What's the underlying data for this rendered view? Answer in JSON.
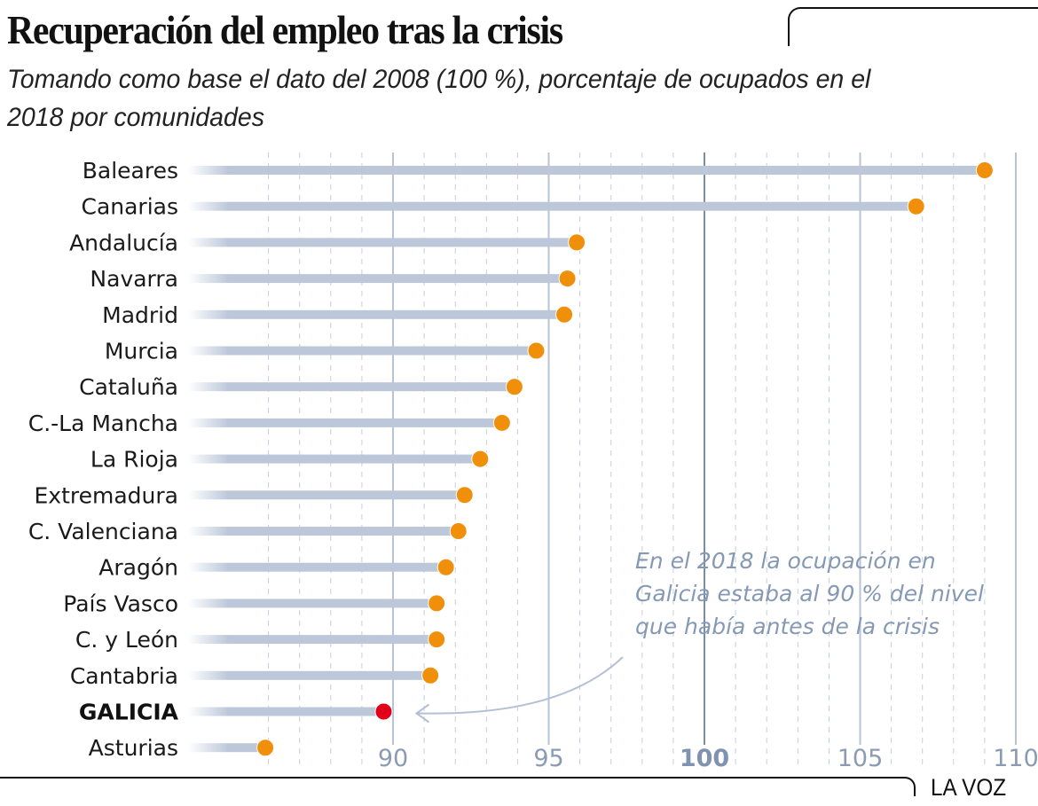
{
  "header": {
    "title": "Recuperación del empleo tras la crisis",
    "subtitle": "Tomando como base el dato del 2008 (100 %), porcentaje de ocupados en el 2018 por comunidades"
  },
  "footer": {
    "brand": "LA VOZ"
  },
  "annotation": {
    "text": "En el 2018 la ocupación en Galicia estaba al 90 % del nivel que había antes de la crisis",
    "target": "GALICIA"
  },
  "colors": {
    "bar": "#bcc8da",
    "dot": "#f0900a",
    "highlight_dot": "#e2001a",
    "grid": "#c5cfdd",
    "major_grid": "#b7c3d6",
    "base_line": "#7a8ea9",
    "annotation": "#8699b4"
  },
  "chart_data": {
    "type": "dot",
    "title": "Recuperación del empleo tras la crisis",
    "subtitle": "Tomando como base el dato del 2008 (100 %), porcentaje de ocupados en el 2018 por comunidades",
    "xlabel": "",
    "ylabel": "",
    "xlim": [
      84,
      110.3
    ],
    "x_ticks": [
      90,
      95,
      100,
      105,
      110
    ],
    "x_tick_labels": [
      "90",
      "95",
      "100",
      "105",
      "110"
    ],
    "base_value": 100,
    "minor_grid_step": 1,
    "grid": true,
    "highlight": "GALICIA",
    "categories": [
      "Baleares",
      "Canarias",
      "Andalucía",
      "Navarra",
      "Madrid",
      "Murcia",
      "Cataluña",
      "C.-La Mancha",
      "La Rioja",
      "Extremadura",
      "C. Valenciana",
      "Aragón",
      "País Vasco",
      "C. y León",
      "Cantabria",
      "GALICIA",
      "Asturias"
    ],
    "values": [
      109.0,
      106.8,
      95.9,
      95.6,
      95.5,
      94.6,
      93.9,
      93.5,
      92.8,
      92.3,
      92.1,
      91.7,
      91.4,
      91.4,
      91.2,
      89.7,
      85.9
    ]
  }
}
